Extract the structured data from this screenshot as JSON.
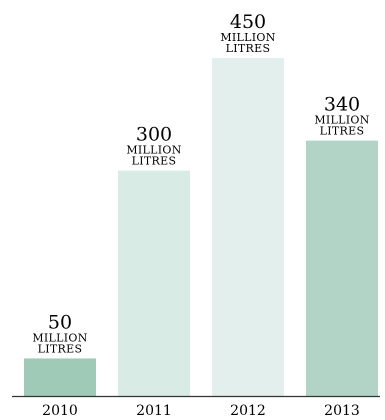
{
  "chart_data": {
    "type": "bar",
    "categories": [
      "2010",
      "2011",
      "2012",
      "2013"
    ],
    "values": [
      50,
      300,
      450,
      340
    ],
    "value_labels": [
      {
        "number": "50",
        "unit_line1": "MILLION",
        "unit_line2": "LITRES"
      },
      {
        "number": "300",
        "unit_line1": "MILLION",
        "unit_line2": "LITRES"
      },
      {
        "number": "450",
        "unit_line1": "MILLION",
        "unit_line2": "LITRES"
      },
      {
        "number": "340",
        "unit_line1": "MILLION",
        "unit_line2": "LITRES"
      }
    ],
    "bar_colors": [
      "#9fcab8",
      "#d8ebe5",
      "#e3efec",
      "#b2d4c7"
    ],
    "baseline_color": "#333333",
    "ylim": [
      0,
      450
    ],
    "grid": false,
    "legend": "none",
    "title": "",
    "xlabel": "",
    "ylabel": ""
  }
}
